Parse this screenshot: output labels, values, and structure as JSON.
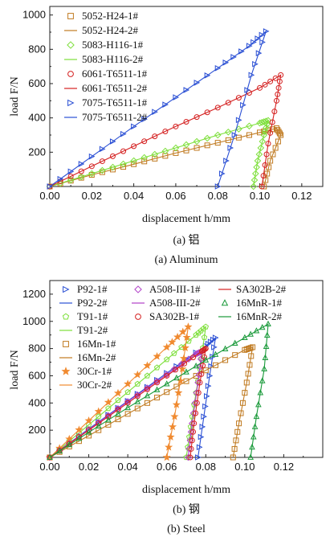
{
  "chart_data": [
    {
      "type": "line",
      "xlabel": "displacement h/mm",
      "ylabel": "load F/N",
      "xlim": [
        0,
        0.13
      ],
      "ylim": [
        0,
        1050
      ],
      "xticks": [
        "0.00",
        "0.02",
        "0.04",
        "0.06",
        "0.08",
        "0.10",
        "0.12"
      ],
      "yticks": [
        "200",
        "400",
        "600",
        "800",
        "1000"
      ],
      "caption_cn": "(a) 铝",
      "caption_en": "(a) Aluminum",
      "series": [
        {
          "name": "5052-H24-1#",
          "color": "#c07a20",
          "marker": "square",
          "points": [
            [
              0,
              0
            ],
            [
              0.02,
              68
            ],
            [
              0.04,
              130
            ],
            [
              0.06,
              195
            ],
            [
              0.08,
              255
            ],
            [
              0.1,
              315
            ],
            [
              0.108,
              340
            ],
            [
              0.11,
              300
            ],
            [
              0.105,
              150
            ],
            [
              0.102,
              0
            ]
          ]
        },
        {
          "name": "5052-H24-2#",
          "color": "#c07a20",
          "marker": "none",
          "points": [
            [
              0,
              0
            ],
            [
              0.02,
              68
            ],
            [
              0.04,
              130
            ],
            [
              0.06,
              195
            ],
            [
              0.08,
              255
            ],
            [
              0.1,
              315
            ],
            [
              0.108,
              340
            ],
            [
              0.11,
              300
            ],
            [
              0.105,
              150
            ],
            [
              0.102,
              0
            ]
          ]
        },
        {
          "name": "5083-H116-1#",
          "color": "#7ddf3a",
          "marker": "diamond",
          "points": [
            [
              0,
              0
            ],
            [
              0.02,
              75
            ],
            [
              0.04,
              150
            ],
            [
              0.06,
              225
            ],
            [
              0.08,
              300
            ],
            [
              0.1,
              370
            ],
            [
              0.104,
              385
            ],
            [
              0.102,
              300
            ],
            [
              0.099,
              150
            ],
            [
              0.097,
              0
            ]
          ]
        },
        {
          "name": "5083-H116-2#",
          "color": "#7ddf3a",
          "marker": "none",
          "points": [
            [
              0,
              0
            ],
            [
              0.02,
              75
            ],
            [
              0.04,
              150
            ],
            [
              0.06,
              225
            ],
            [
              0.08,
              300
            ],
            [
              0.1,
              370
            ],
            [
              0.104,
              385
            ],
            [
              0.102,
              300
            ],
            [
              0.099,
              150
            ],
            [
              0.097,
              0
            ]
          ]
        },
        {
          "name": "6061-T6511-1#",
          "color": "#d42020",
          "marker": "circle",
          "points": [
            [
              0,
              0
            ],
            [
              0.02,
              118
            ],
            [
              0.04,
              235
            ],
            [
              0.06,
              350
            ],
            [
              0.08,
              460
            ],
            [
              0.1,
              575
            ],
            [
              0.11,
              650
            ],
            [
              0.108,
              500
            ],
            [
              0.104,
              250
            ],
            [
              0.101,
              0
            ]
          ]
        },
        {
          "name": "6061-T6511-2#",
          "color": "#d42020",
          "marker": "none",
          "points": [
            [
              0,
              0
            ],
            [
              0.02,
              118
            ],
            [
              0.04,
              235
            ],
            [
              0.06,
              350
            ],
            [
              0.08,
              460
            ],
            [
              0.1,
              575
            ],
            [
              0.11,
              650
            ],
            [
              0.108,
              500
            ],
            [
              0.104,
              250
            ],
            [
              0.101,
              0
            ]
          ]
        },
        {
          "name": "7075-T6511-1#",
          "color": "#2a4fd4",
          "marker": "triangle-right",
          "points": [
            [
              0,
              0
            ],
            [
              0.02,
              175
            ],
            [
              0.04,
              350
            ],
            [
              0.06,
              520
            ],
            [
              0.08,
              690
            ],
            [
              0.095,
              820
            ],
            [
              0.103,
              905
            ],
            [
              0.096,
              650
            ],
            [
              0.088,
              300
            ],
            [
              0.08,
              0
            ]
          ]
        },
        {
          "name": "7075-T6511-2#",
          "color": "#2a4fd4",
          "marker": "none",
          "points": [
            [
              0,
              0
            ],
            [
              0.02,
              175
            ],
            [
              0.04,
              350
            ],
            [
              0.06,
              520
            ],
            [
              0.08,
              690
            ],
            [
              0.095,
              820
            ],
            [
              0.103,
              905
            ],
            [
              0.096,
              650
            ],
            [
              0.088,
              300
            ],
            [
              0.08,
              0
            ]
          ]
        }
      ]
    },
    {
      "type": "line",
      "xlabel": "displacement h/mm",
      "ylabel": "load F/N",
      "xlim": [
        0,
        0.14
      ],
      "ylim": [
        0,
        1300
      ],
      "xticks": [
        "0.00",
        "0.02",
        "0.04",
        "0.06",
        "0.08",
        "0.10",
        "0.12"
      ],
      "yticks": [
        "200",
        "400",
        "600",
        "800",
        "1000",
        "1200"
      ],
      "caption_cn": "(b) 钢",
      "caption_en": "(b) Steel",
      "series": [
        {
          "name": "P92-1#",
          "color": "#2a4fd4",
          "marker": "triangle-right",
          "points": [
            [
              0,
              0
            ],
            [
              0.02,
              210
            ],
            [
              0.04,
              415
            ],
            [
              0.06,
              620
            ],
            [
              0.08,
              820
            ],
            [
              0.085,
              880
            ],
            [
              0.082,
              600
            ],
            [
              0.079,
              300
            ],
            [
              0.076,
              0
            ]
          ]
        },
        {
          "name": "P92-2#",
          "color": "#2a4fd4",
          "marker": "none",
          "points": [
            [
              0,
              0
            ],
            [
              0.02,
              210
            ],
            [
              0.04,
              415
            ],
            [
              0.06,
              620
            ],
            [
              0.08,
              820
            ],
            [
              0.085,
              880
            ],
            [
              0.082,
              600
            ],
            [
              0.079,
              300
            ],
            [
              0.076,
              0
            ]
          ]
        },
        {
          "name": "T91-1#",
          "color": "#7ddf3a",
          "marker": "pentagon",
          "points": [
            [
              0,
              0
            ],
            [
              0.02,
              240
            ],
            [
              0.04,
              480
            ],
            [
              0.06,
              720
            ],
            [
              0.075,
              900
            ],
            [
              0.08,
              960
            ],
            [
              0.077,
              650
            ],
            [
              0.073,
              300
            ],
            [
              0.07,
              0
            ]
          ]
        },
        {
          "name": "T91-2#",
          "color": "#7ddf3a",
          "marker": "none",
          "points": [
            [
              0,
              0
            ],
            [
              0.02,
              240
            ],
            [
              0.04,
              480
            ],
            [
              0.06,
              720
            ],
            [
              0.075,
              900
            ],
            [
              0.08,
              960
            ],
            [
              0.077,
              650
            ],
            [
              0.073,
              300
            ],
            [
              0.07,
              0
            ]
          ]
        },
        {
          "name": "16Mn-1#",
          "color": "#c07a20",
          "marker": "square",
          "points": [
            [
              0,
              0
            ],
            [
              0.02,
              160
            ],
            [
              0.04,
              320
            ],
            [
              0.06,
              480
            ],
            [
              0.08,
              640
            ],
            [
              0.1,
              790
            ],
            [
              0.104,
              810
            ],
            [
              0.101,
              550
            ],
            [
              0.097,
              250
            ],
            [
              0.094,
              0
            ]
          ]
        },
        {
          "name": "16Mn-2#",
          "color": "#c07a20",
          "marker": "none",
          "points": [
            [
              0,
              0
            ],
            [
              0.02,
              160
            ],
            [
              0.04,
              320
            ],
            [
              0.06,
              480
            ],
            [
              0.08,
              640
            ],
            [
              0.1,
              790
            ],
            [
              0.104,
              810
            ],
            [
              0.101,
              550
            ],
            [
              0.097,
              250
            ],
            [
              0.094,
              0
            ]
          ]
        },
        {
          "name": "30Cr-1#",
          "color": "#f08a30",
          "marker": "star",
          "points": [
            [
              0,
              0
            ],
            [
              0.02,
              270
            ],
            [
              0.04,
              540
            ],
            [
              0.06,
              810
            ],
            [
              0.071,
              960
            ],
            [
              0.068,
              650
            ],
            [
              0.064,
              300
            ],
            [
              0.06,
              0
            ]
          ]
        },
        {
          "name": "30Cr-2#",
          "color": "#f08a30",
          "marker": "none",
          "points": [
            [
              0,
              0
            ],
            [
              0.02,
              270
            ],
            [
              0.04,
              540
            ],
            [
              0.06,
              810
            ],
            [
              0.071,
              960
            ],
            [
              0.068,
              650
            ],
            [
              0.064,
              300
            ],
            [
              0.06,
              0
            ]
          ]
        },
        {
          "name": "A508-III-1#",
          "color": "#b040c8",
          "marker": "diamond",
          "points": [
            [
              0,
              0
            ],
            [
              0.02,
              205
            ],
            [
              0.04,
              410
            ],
            [
              0.06,
              610
            ],
            [
              0.075,
              760
            ],
            [
              0.078,
              780
            ],
            [
              0.076,
              550
            ],
            [
              0.073,
              250
            ],
            [
              0.071,
              0
            ]
          ]
        },
        {
          "name": "A508-III-2#",
          "color": "#b040c8",
          "marker": "none",
          "points": [
            [
              0,
              0
            ],
            [
              0.02,
              205
            ],
            [
              0.04,
              410
            ],
            [
              0.06,
              610
            ],
            [
              0.075,
              760
            ],
            [
              0.078,
              780
            ],
            [
              0.076,
              550
            ],
            [
              0.073,
              250
            ],
            [
              0.071,
              0
            ]
          ]
        },
        {
          "name": "SA302B-1#",
          "color": "#d42020",
          "marker": "circle",
          "points": [
            [
              0,
              0
            ],
            [
              0.02,
              200
            ],
            [
              0.04,
              400
            ],
            [
              0.06,
              600
            ],
            [
              0.078,
              780
            ],
            [
              0.08,
              800
            ],
            [
              0.077,
              550
            ],
            [
              0.074,
              250
            ],
            [
              0.072,
              0
            ]
          ]
        },
        {
          "name": "SA302B-2#",
          "color": "#d42020",
          "marker": "none",
          "points": [
            [
              0,
              0
            ],
            [
              0.02,
              200
            ],
            [
              0.04,
              400
            ],
            [
              0.06,
              600
            ],
            [
              0.078,
              780
            ],
            [
              0.08,
              800
            ],
            [
              0.077,
              550
            ],
            [
              0.074,
              250
            ],
            [
              0.072,
              0
            ]
          ]
        },
        {
          "name": "16MnR-1#",
          "color": "#1a9a3a",
          "marker": "triangle-up",
          "points": [
            [
              0,
              0
            ],
            [
              0.02,
              185
            ],
            [
              0.04,
              365
            ],
            [
              0.06,
              540
            ],
            [
              0.08,
              715
            ],
            [
              0.1,
              880
            ],
            [
              0.112,
              980
            ],
            [
              0.11,
              650
            ],
            [
              0.106,
              300
            ],
            [
              0.103,
              0
            ]
          ]
        },
        {
          "name": "16MnR-2#",
          "color": "#1a9a3a",
          "marker": "none",
          "points": [
            [
              0,
              0
            ],
            [
              0.02,
              185
            ],
            [
              0.04,
              365
            ],
            [
              0.06,
              540
            ],
            [
              0.08,
              715
            ],
            [
              0.1,
              880
            ],
            [
              0.112,
              980
            ],
            [
              0.11,
              650
            ],
            [
              0.106,
              300
            ],
            [
              0.103,
              0
            ]
          ]
        }
      ]
    }
  ]
}
